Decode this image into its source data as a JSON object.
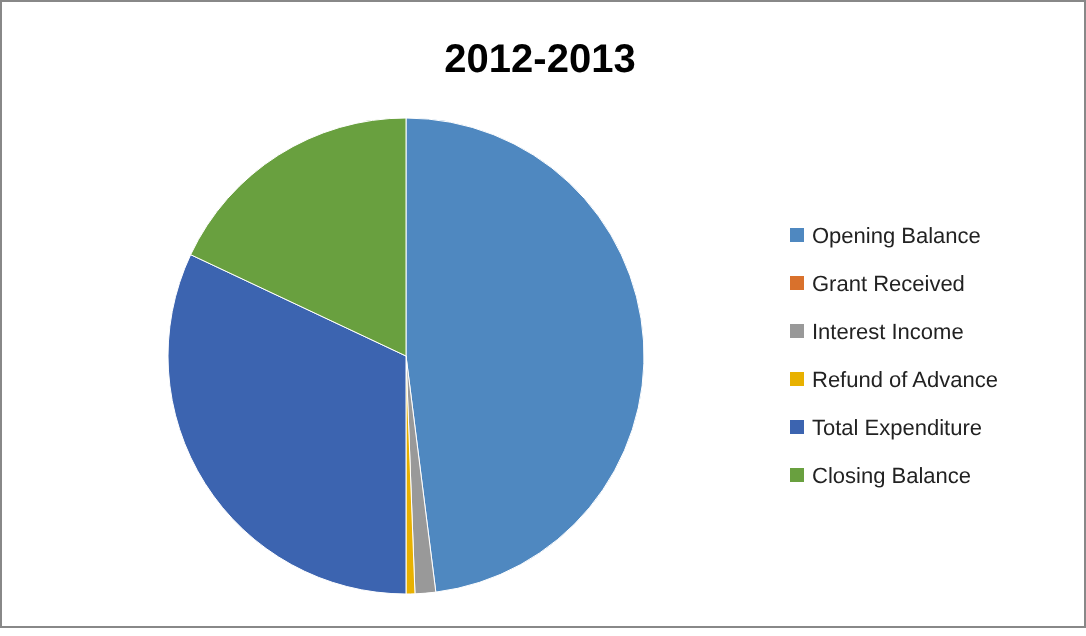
{
  "chart_data": {
    "type": "pie",
    "title": "2012-2013",
    "categories": [
      "Opening Balance",
      "Grant Received",
      "Interest Income",
      "Refund of Advance",
      "Total Expenditure",
      "Closing Balance"
    ],
    "values": [
      48,
      0,
      1.4,
      0.6,
      32,
      18
    ],
    "colors": [
      "#4f88c0",
      "#d9712c",
      "#999999",
      "#e8b100",
      "#3c64b0",
      "#69a03f"
    ],
    "legend": "right"
  }
}
